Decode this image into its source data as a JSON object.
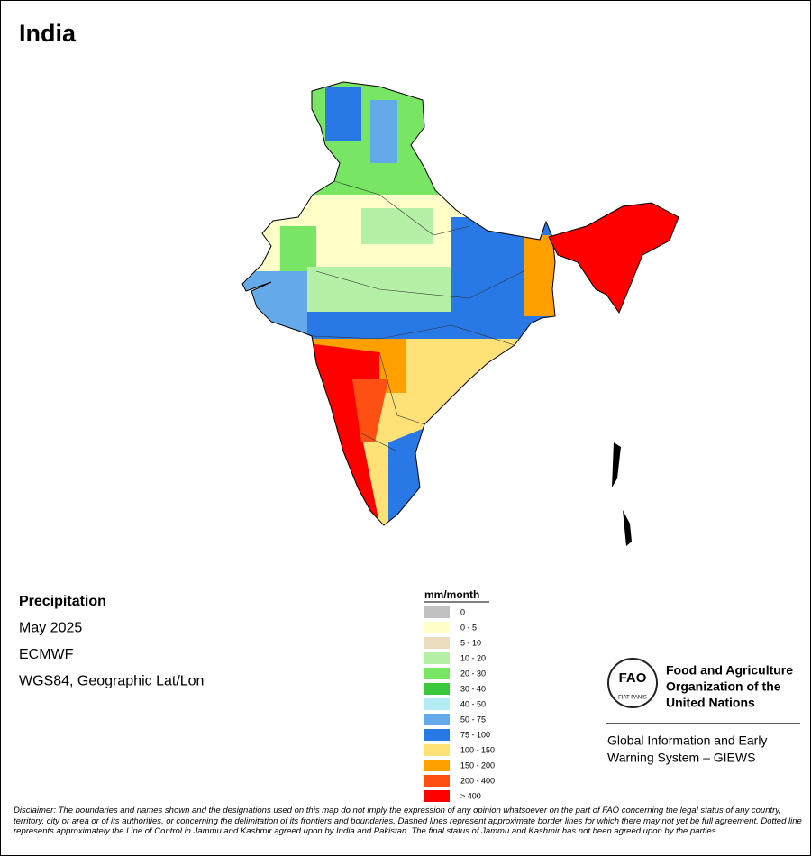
{
  "header": {
    "title": "India"
  },
  "info": {
    "lines": [
      "Precipitation",
      "May 2025",
      "ECMWF",
      "WGS84, Geographic Lat/Lon"
    ]
  },
  "legend": {
    "title": "mm/month",
    "items": [
      {
        "label": "0",
        "color": "#c0c0c0"
      },
      {
        "label": "0 - 5",
        "color": "#ffffc8"
      },
      {
        "label": "5 - 10",
        "color": "#ebdcbe"
      },
      {
        "label": "10 - 20",
        "color": "#b4f0a5"
      },
      {
        "label": "20 - 30",
        "color": "#78e664"
      },
      {
        "label": "30 - 40",
        "color": "#3cc83c"
      },
      {
        "label": "40 - 50",
        "color": "#b4ebf5"
      },
      {
        "label": "50 - 75",
        "color": "#64aaeb"
      },
      {
        "label": "75 - 100",
        "color": "#2878e6"
      },
      {
        "label": "100 - 150",
        "color": "#ffe178"
      },
      {
        "label": "150 - 200",
        "color": "#ffa000"
      },
      {
        "label": "200 - 400",
        "color": "#ff5014"
      },
      {
        "label": "> 400",
        "color": "#ff0000"
      }
    ]
  },
  "logo": {
    "emblem": "FAO",
    "motto": "FIAT PANIS",
    "org": [
      "Food and Agriculture",
      "Organization of the",
      "United Nations"
    ],
    "system": [
      "Global Information and Early",
      "Warning System – GIEWS"
    ]
  },
  "disclaimer": "Disclaimer: The boundaries and names shown and the designations used on this map do not imply the expression of any opinion whatsoever on the part of FAO concerning the legal status of any country, territory, city or area or of its authorities, or concerning the delimitation of its frontiers and boundaries. Dashed lines represent approximate border lines for which there may not yet be full agreement. Dotted line represents approximately the Line of Control in Jammu and Kashmir agreed upon by India and Pakistan. The final status of Jammu and Kashmir has not been agreed upon by the parties."
}
